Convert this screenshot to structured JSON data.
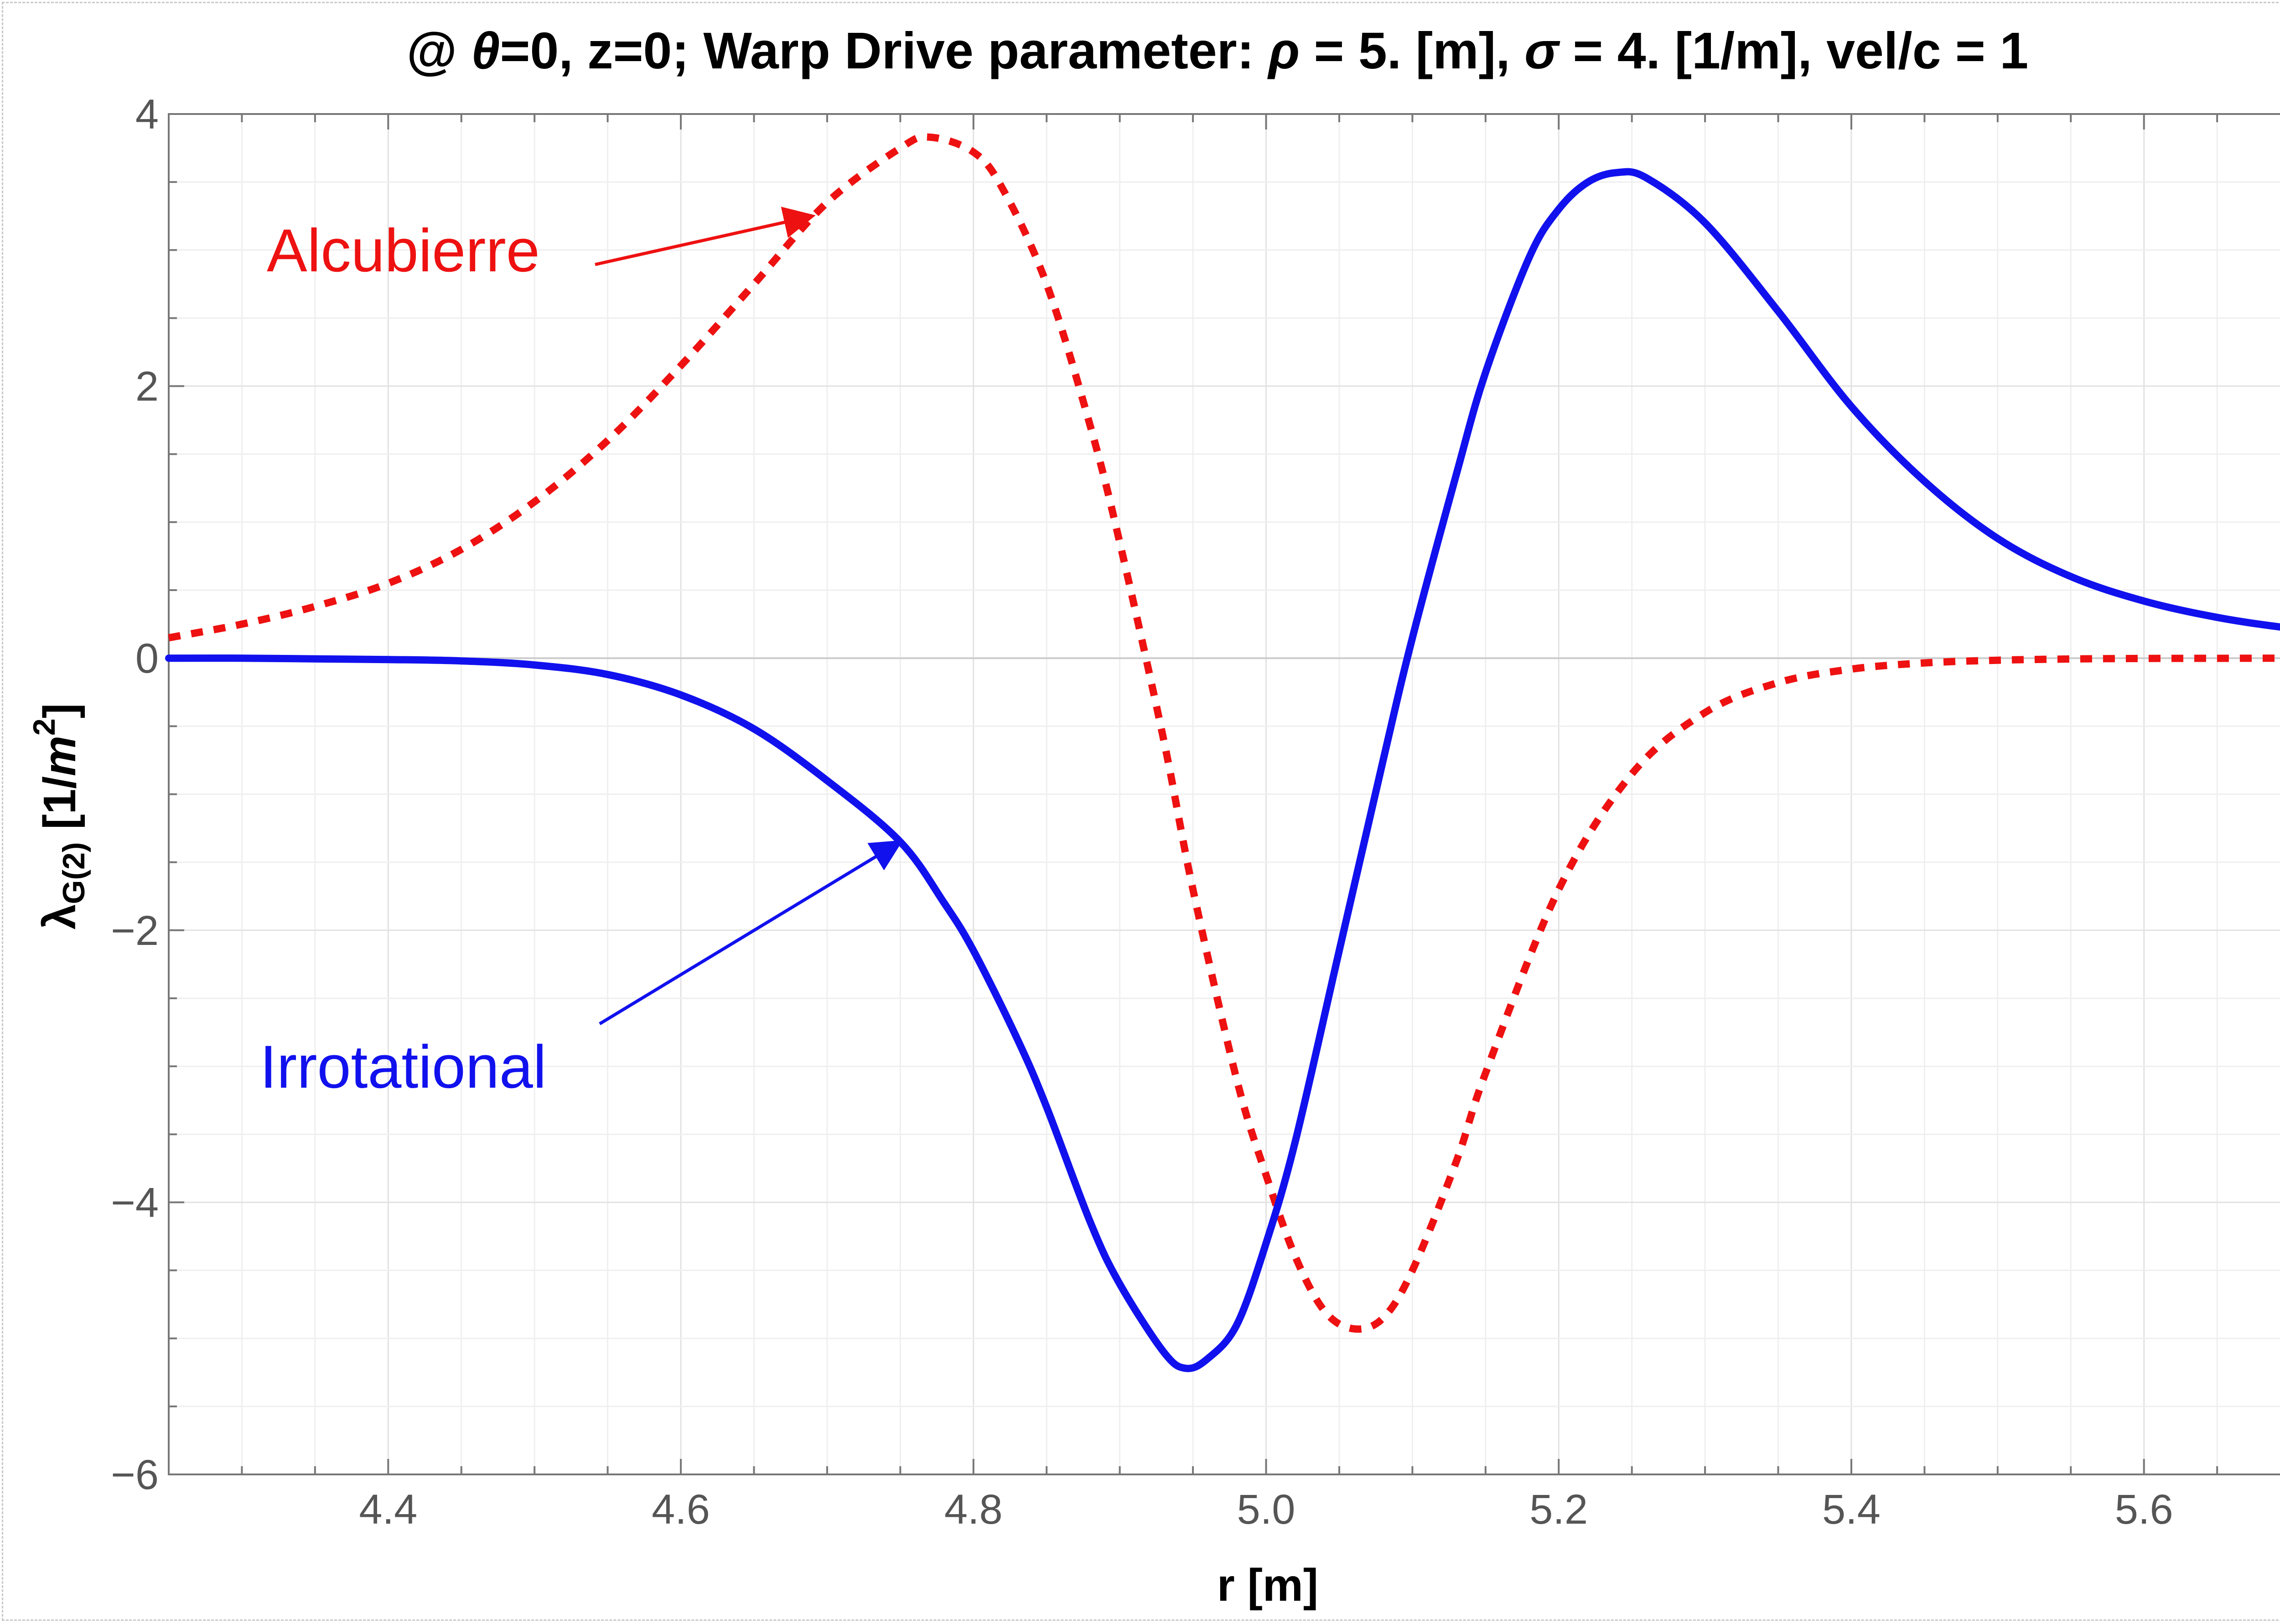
{
  "chart_data": {
    "type": "line",
    "title_parts": {
      "prefix": "@ ",
      "theta": "θ",
      "after_theta": "=0, z=0; Warp Drive parameter: ",
      "rho": "ρ",
      "after_rho": " = 5. [m], ",
      "sigma": "σ",
      "after_sigma": " = 4. [1/m], vel/c = 1"
    },
    "xlabel": "r [m]",
    "ylabel": {
      "lambda": "λ",
      "subscript": "G(2)",
      "unit_open": " [1/",
      "unit_var": "m",
      "unit_exp": "2",
      "unit_close": "]"
    },
    "xlim": [
      4.25,
      5.75
    ],
    "ylim": [
      -6,
      4
    ],
    "x_ticks": [
      "4.4",
      "4.6",
      "4.8",
      "5.0",
      "5.2",
      "5.4",
      "5.6"
    ],
    "x_tick_values": [
      4.4,
      4.6,
      4.8,
      5.0,
      5.2,
      5.4,
      5.6
    ],
    "y_ticks": [
      "4",
      "2",
      "0",
      "−2",
      "−4",
      "−6"
    ],
    "y_tick_values": [
      4,
      2,
      0,
      -2,
      -4,
      -6
    ],
    "grid": true,
    "series": [
      {
        "name": "Alcubierre",
        "color": "#ee1111",
        "style": "dotted",
        "x": [
          4.25,
          4.3,
          4.35,
          4.4,
          4.45,
          4.5,
          4.55,
          4.6,
          4.65,
          4.7,
          4.75,
          4.77,
          4.8,
          4.82,
          4.85,
          4.88,
          4.9,
          4.93,
          4.95,
          4.98,
          5.0,
          5.02,
          5.04,
          5.06,
          5.08,
          5.1,
          5.13,
          5.15,
          5.2,
          5.25,
          5.3,
          5.35,
          5.4,
          5.45,
          5.5,
          5.55,
          5.6,
          5.65,
          5.7,
          5.75
        ],
        "values": [
          0.15,
          0.25,
          0.38,
          0.55,
          0.8,
          1.15,
          1.6,
          2.15,
          2.75,
          3.35,
          3.75,
          3.83,
          3.72,
          3.45,
          2.75,
          1.7,
          0.85,
          -0.6,
          -1.7,
          -3.1,
          -3.8,
          -4.4,
          -4.8,
          -4.93,
          -4.85,
          -4.5,
          -3.7,
          -3.05,
          -1.7,
          -0.85,
          -0.4,
          -0.18,
          -0.08,
          -0.035,
          -0.015,
          -0.006,
          -0.002,
          -0.001,
          0,
          0
        ]
      },
      {
        "name": "Irrotational",
        "color": "#1111ee",
        "style": "solid",
        "x": [
          4.25,
          4.3,
          4.35,
          4.4,
          4.45,
          4.5,
          4.55,
          4.6,
          4.65,
          4.7,
          4.75,
          4.78,
          4.8,
          4.83,
          4.85,
          4.88,
          4.9,
          4.93,
          4.945,
          4.96,
          4.98,
          5.0,
          5.02,
          5.05,
          5.08,
          5.1,
          5.13,
          5.15,
          5.18,
          5.2,
          5.22,
          5.24,
          5.26,
          5.3,
          5.35,
          5.4,
          5.45,
          5.5,
          5.55,
          5.6,
          5.65,
          5.7,
          5.75
        ],
        "values": [
          0,
          0,
          -0.005,
          -0.01,
          -0.02,
          -0.05,
          -0.12,
          -0.27,
          -0.52,
          -0.9,
          -1.35,
          -1.8,
          -2.15,
          -2.8,
          -3.3,
          -4.15,
          -4.6,
          -5.1,
          -5.22,
          -5.15,
          -4.9,
          -4.3,
          -3.55,
          -2.15,
          -0.75,
          0.15,
          1.35,
          2.1,
          2.95,
          3.3,
          3.5,
          3.57,
          3.53,
          3.2,
          2.55,
          1.85,
          1.3,
          0.88,
          0.6,
          0.42,
          0.3,
          0.22,
          0.17
        ]
      }
    ],
    "annotations": [
      {
        "text": "Alcubierre",
        "color": "#ee1111",
        "points_to_x": 4.69,
        "points_to_y": 3.25
      },
      {
        "text": "Irrotational",
        "color": "#1111ee",
        "points_to_x": 4.75,
        "points_to_y": -1.35
      }
    ]
  }
}
